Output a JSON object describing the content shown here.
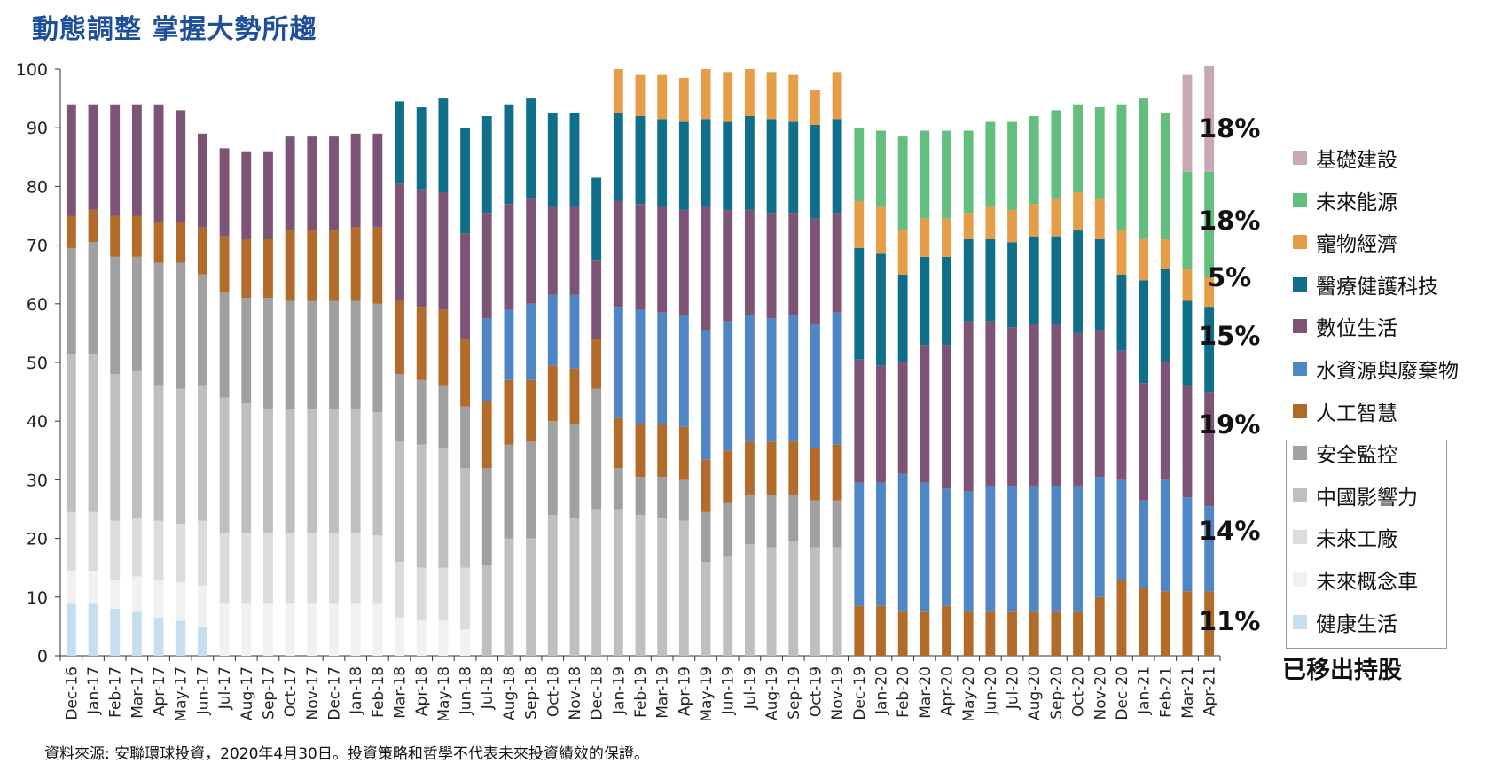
{
  "title": "動態調整  掌握大勢所趨",
  "source_note": "資料來源: 安聯環球投資，2020年4月30日。投資策略和哲學不代表未來投資績效的保證。",
  "removed_label": "已移出持股",
  "annotations": [
    "18%",
    "18%",
    "5%",
    "15%",
    "19%",
    "14%",
    "11%"
  ],
  "chart_data": {
    "type": "bar",
    "stacked": true,
    "title": "動態調整  掌握大勢所趨",
    "xlabel": "",
    "ylabel": "",
    "ylim": [
      0,
      100
    ],
    "yticks": [
      0,
      10,
      20,
      30,
      40,
      50,
      60,
      70,
      80,
      90,
      100
    ],
    "grid": false,
    "legend_position": "right",
    "categories": [
      "Dec-16",
      "Jan-17",
      "Feb-17",
      "Mar-17",
      "Apr-17",
      "May-17",
      "Jun-17",
      "Jul-17",
      "Aug-17",
      "Sep-17",
      "Oct-17",
      "Nov-17",
      "Dec-17",
      "Jan-18",
      "Feb-18",
      "Mar-18",
      "Apr-18",
      "May-18",
      "Jun-18",
      "Jul-18",
      "Aug-18",
      "Sep-18",
      "Oct-18",
      "Nov-18",
      "Dec-18",
      "Jan-19",
      "Feb-19",
      "Mar-19",
      "Apr-19",
      "May-19",
      "Jun-19",
      "Jul-19",
      "Aug-19",
      "Sep-19",
      "Oct-19",
      "Nov-19",
      "Dec-19",
      "Jan-20",
      "Feb-20",
      "Mar-20",
      "Apr-20",
      "May-20",
      "Jun-20",
      "Jul-20",
      "Aug-20",
      "Sep-20",
      "Oct-20",
      "Nov-20",
      "Dec-20",
      "Jan-21",
      "Feb-21",
      "Mar-21",
      "Apr-21"
    ],
    "series": [
      {
        "name": "健康生活",
        "color": "#c6dff0",
        "values": [
          9,
          9,
          8,
          7.5,
          6.5,
          6,
          5,
          0,
          0,
          0,
          0,
          0,
          0,
          0,
          0,
          0,
          0,
          0,
          0,
          0,
          0,
          0,
          0,
          0,
          0,
          0,
          0,
          0,
          0,
          0,
          0,
          0,
          0,
          0,
          0,
          0,
          0,
          0,
          0,
          0,
          0,
          0,
          0,
          0,
          0,
          0,
          0,
          0,
          0,
          0,
          0,
          0,
          0
        ]
      },
      {
        "name": "未來概念車",
        "color": "#f1f1f1",
        "values": [
          5.5,
          5.5,
          5,
          6,
          6.5,
          6.5,
          7,
          9,
          9,
          9,
          9,
          9,
          9,
          9,
          9,
          6.5,
          6,
          6,
          4.5,
          0,
          0,
          0,
          0,
          0,
          0,
          0,
          0,
          0,
          0,
          0,
          0,
          0,
          0,
          0,
          0,
          0,
          0,
          0,
          0,
          0,
          0,
          0,
          0,
          0,
          0,
          0,
          0,
          0,
          0,
          0,
          0,
          0,
          0
        ]
      },
      {
        "name": "未來工廠",
        "color": "#dcdcdc",
        "values": [
          10,
          10,
          10,
          10,
          10,
          10,
          11,
          12,
          12,
          12,
          12,
          12,
          12,
          12,
          11.5,
          9.5,
          9,
          9,
          10.5,
          0,
          0,
          0,
          0,
          0,
          0,
          0,
          0,
          0,
          0,
          0,
          0,
          0,
          0,
          0,
          0,
          0,
          0,
          0,
          0,
          0,
          0,
          0,
          0,
          0,
          0,
          0,
          0,
          0,
          0,
          0,
          0,
          0,
          0
        ]
      },
      {
        "name": "中國影響力",
        "color": "#bfbfbf",
        "values": [
          27,
          27,
          25,
          25,
          23,
          23,
          23,
          23,
          22,
          21,
          21,
          21,
          21,
          21,
          21,
          20.5,
          21,
          20.5,
          17,
          15.5,
          20,
          20,
          24,
          23.5,
          25,
          25,
          24,
          23.5,
          23,
          16,
          17,
          19,
          18.5,
          19.5,
          18.5,
          18.5,
          0,
          0,
          0,
          0,
          0,
          0,
          0,
          0,
          0,
          0,
          0,
          0,
          0,
          0,
          0,
          0,
          0
        ]
      },
      {
        "name": "安全監控",
        "color": "#a0a0a0",
        "values": [
          18,
          19,
          20,
          19.5,
          21,
          21.5,
          19,
          18,
          18,
          19,
          18.5,
          18.5,
          18.5,
          18.5,
          18.5,
          11.5,
          11,
          10.5,
          10.5,
          16.5,
          16,
          16.5,
          16,
          16,
          20.5,
          7,
          6.5,
          7,
          7,
          8.5,
          9,
          8.5,
          9,
          8,
          8,
          8,
          0,
          0,
          0,
          0,
          0,
          0,
          0,
          0,
          0,
          0,
          0,
          0,
          0,
          0,
          0,
          0,
          0
        ]
      },
      {
        "name": "人工智慧",
        "color": "#b36b2a",
        "values": [
          5.5,
          5.5,
          7,
          7,
          7,
          7,
          8,
          9.5,
          10,
          10,
          12,
          12,
          12,
          12.5,
          13,
          12.5,
          12.5,
          13,
          11.5,
          11.5,
          11,
          10.5,
          9.5,
          9.5,
          8.5,
          8.5,
          9,
          9,
          9,
          9,
          9,
          9,
          9,
          9,
          9,
          9.5,
          8.5,
          8.5,
          7.5,
          7.5,
          8.5,
          7.5,
          7.5,
          7.5,
          7.5,
          7.5,
          7.5,
          10,
          13,
          11.5,
          11,
          11,
          11
        ]
      },
      {
        "name": "水資源與廢棄物",
        "color": "#4f86c6",
        "values": [
          0,
          0,
          0,
          0,
          0,
          0,
          0,
          0,
          0,
          0,
          0,
          0,
          0,
          0,
          0,
          0,
          0,
          0,
          0,
          14,
          12,
          13,
          12,
          12.5,
          0,
          19,
          19.5,
          19,
          19,
          22,
          22,
          21.5,
          21,
          21.5,
          21,
          22.5,
          21,
          21,
          23.5,
          22,
          20,
          20.5,
          21.5,
          21.5,
          21.5,
          21.5,
          21.5,
          20.5,
          17,
          15,
          19,
          16,
          14.5
        ]
      },
      {
        "name": "數位生活",
        "color": "#7e5476",
        "values": [
          19,
          18,
          19,
          19,
          20,
          19,
          16,
          15,
          15,
          15,
          16,
          16,
          16,
          16,
          16,
          20,
          20,
          20,
          18,
          18,
          18,
          18,
          15,
          15,
          13.5,
          18,
          18,
          18,
          18,
          21,
          19,
          18,
          18,
          17.5,
          18,
          17,
          21,
          20,
          19,
          23.5,
          24.5,
          29,
          28,
          27,
          27.5,
          27.5,
          26,
          25,
          22,
          20,
          20,
          19,
          19.5
        ]
      },
      {
        "name": "醫療健護科技",
        "color": "#0f6e8a",
        "values": [
          0,
          0,
          0,
          0,
          0,
          0,
          0,
          0,
          0,
          0,
          0,
          0,
          0,
          0,
          0,
          14,
          14,
          16,
          18,
          16.5,
          17,
          17,
          16,
          16,
          14,
          15,
          15,
          15,
          15,
          15,
          15,
          16,
          16,
          15.5,
          16,
          16,
          19,
          19,
          15,
          15,
          15,
          14,
          14,
          14.5,
          15,
          15,
          17.5,
          15.5,
          13,
          17.5,
          16,
          14.5,
          14.5
        ]
      },
      {
        "name": "寵物經濟",
        "color": "#e59d47",
        "values": [
          0,
          0,
          0,
          0,
          0,
          0,
          0,
          0,
          0,
          0,
          0,
          0,
          0,
          0,
          0,
          0,
          0,
          0,
          0,
          0,
          0,
          0,
          0,
          0,
          0,
          7.5,
          7,
          7.5,
          7.5,
          8.5,
          8.5,
          8,
          8,
          8,
          6,
          8,
          8,
          8,
          7.5,
          6.5,
          6.5,
          4.5,
          5.5,
          5.5,
          5.5,
          6.5,
          6.5,
          7,
          7.5,
          7,
          5,
          5.5,
          5
        ]
      },
      {
        "name": "未來能源",
        "color": "#62bf7e",
        "values": [
          0,
          0,
          0,
          0,
          0,
          0,
          0,
          0,
          0,
          0,
          0,
          0,
          0,
          0,
          0,
          0,
          0,
          0,
          0,
          0,
          0,
          0,
          0,
          0,
          0,
          0,
          0,
          0,
          0,
          0,
          0,
          0,
          0,
          0,
          0,
          0,
          12.5,
          13,
          16,
          15,
          15,
          14,
          14.5,
          15,
          15,
          15,
          15,
          15.5,
          21.5,
          24,
          21.5,
          16.5,
          18
        ]
      },
      {
        "name": "基礎建設",
        "color": "#c8a8b5",
        "values": [
          0,
          0,
          0,
          0,
          0,
          0,
          0,
          0,
          0,
          0,
          0,
          0,
          0,
          0,
          0,
          0,
          0,
          0,
          0,
          0,
          0,
          0,
          0,
          0,
          0,
          0,
          0,
          0,
          0,
          0,
          0,
          0,
          0,
          0,
          0,
          0,
          0,
          0,
          0,
          0,
          0,
          0,
          0,
          0,
          0,
          0,
          0,
          0,
          0,
          0,
          0,
          16.5,
          18
        ]
      }
    ],
    "legend_order": [
      "基礎建設",
      "未來能源",
      "寵物經濟",
      "醫療健護科技",
      "數位生活",
      "水資源與廢棄物",
      "人工智慧",
      "安全監控",
      "中國影響力",
      "未來工廠",
      "未來概念車",
      "健康生活"
    ]
  }
}
